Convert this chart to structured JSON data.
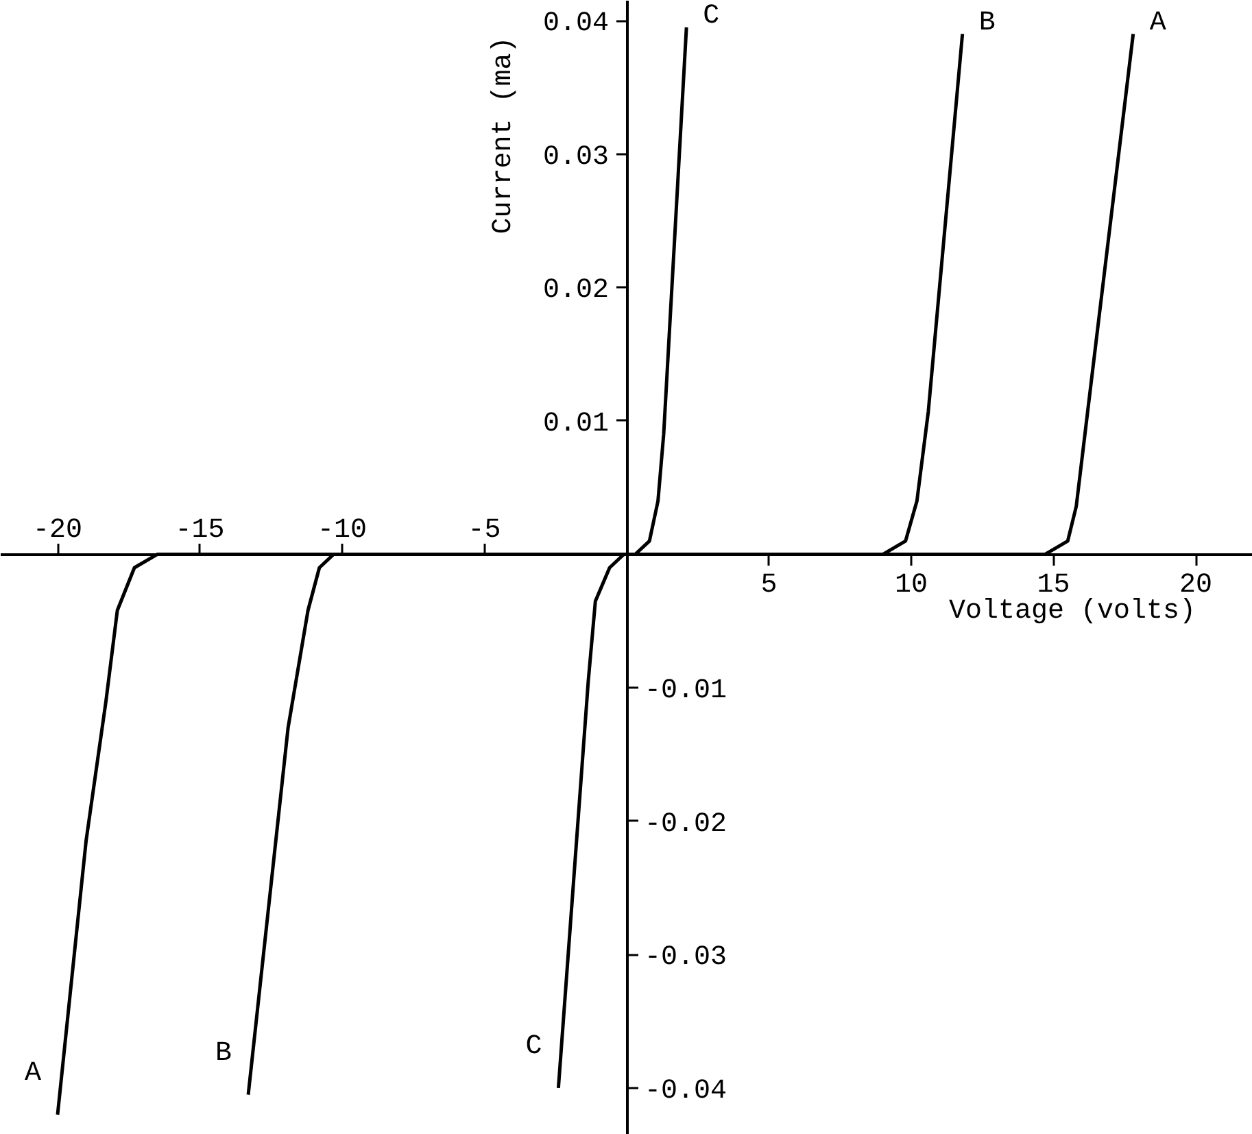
{
  "chart_data": {
    "type": "line",
    "xlabel": "Voltage (volts)",
    "ylabel": "Current (ma)",
    "xlim": [
      -22,
      22
    ],
    "ylim": [
      -0.0435,
      0.0415
    ],
    "xticks": [
      5,
      10,
      15,
      20
    ],
    "x2lim": [
      -22,
      22
    ],
    "x2ticks": [
      -20,
      -15,
      -10,
      -5
    ],
    "yticks": [
      0.01,
      0.02,
      0.03,
      0.04
    ],
    "y2lim": [
      -0.0435,
      0.0415
    ],
    "y2ticks": [
      -0.04,
      -0.03,
      -0.02,
      -0.01
    ],
    "grid": false,
    "line_style": "solid",
    "marker": "none",
    "series": [
      {
        "name": "A",
        "color": "#000000",
        "x": [
          -20.0,
          -19.0,
          -18.3,
          -17.9,
          -17.3,
          -16.5,
          14.7,
          15.5,
          15.8,
          16.2,
          17.8
        ],
        "values": [
          -0.042,
          -0.0215,
          -0.011,
          -0.0042,
          -0.001,
          0,
          0,
          0.001,
          0.0036,
          0.0107,
          0.039
        ]
      },
      {
        "name": "B",
        "color": "#000000",
        "x": [
          -13.3,
          -11.9,
          -11.2,
          -10.8,
          -10.3,
          9.0,
          9.8,
          10.2,
          10.6,
          11.8
        ],
        "values": [
          -0.0405,
          -0.013,
          -0.0042,
          -0.001,
          0,
          0,
          0.001,
          0.004,
          0.0107,
          0.039
        ]
      },
      {
        "name": "C",
        "color": "#000000",
        "x": [
          -2.4,
          -1.35,
          -1.1,
          -0.6,
          -0.1,
          0.3,
          0.8,
          1.1,
          1.3,
          2.1
        ],
        "values": [
          -0.04,
          -0.0095,
          -0.0035,
          -0.001,
          0,
          0,
          0.001,
          0.004,
          0.009,
          0.0395
        ]
      }
    ]
  }
}
